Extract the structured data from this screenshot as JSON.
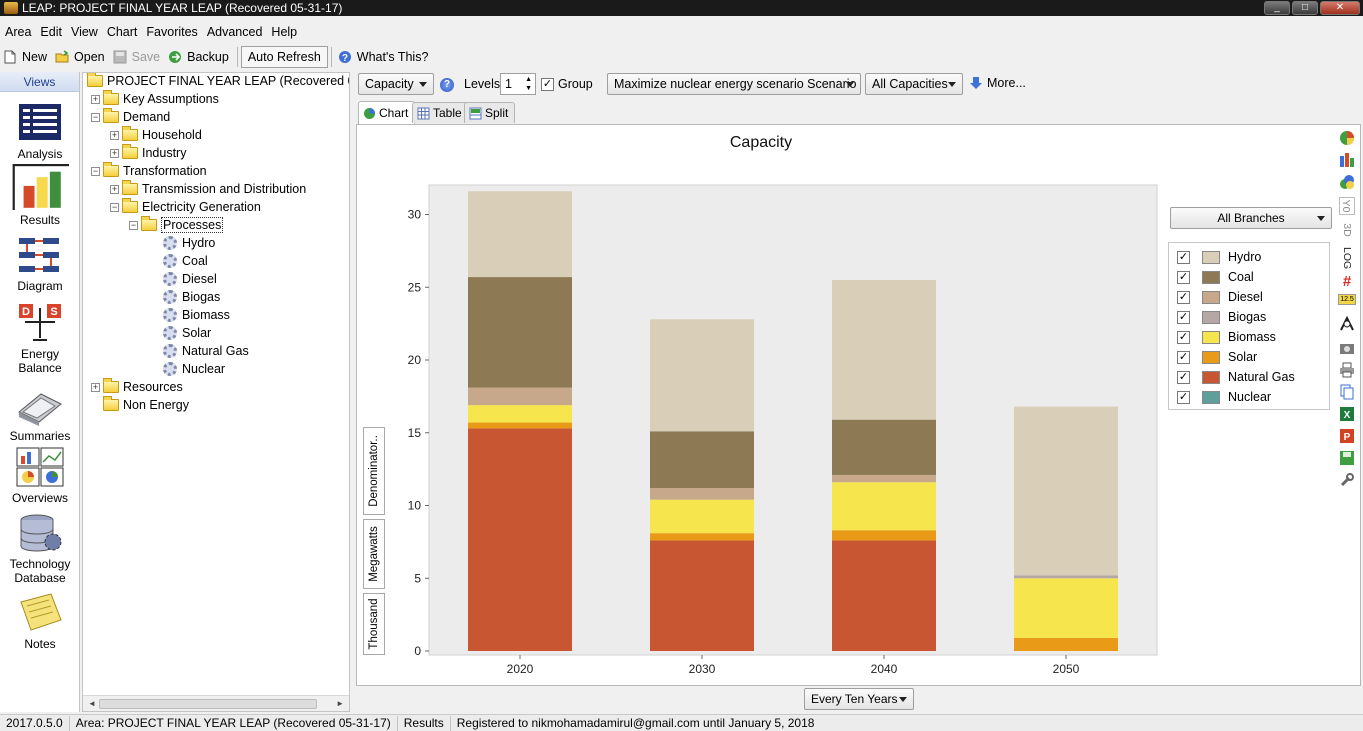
{
  "window": {
    "title": "LEAP: PROJECT FINAL YEAR LEAP (Recovered 05-31-17)",
    "controls": [
      "_",
      "□",
      "✕"
    ]
  },
  "menu": [
    "Area",
    "Edit",
    "View",
    "Chart",
    "Favorites",
    "Advanced",
    "Help"
  ],
  "toolbar": {
    "new": "New",
    "open": "Open",
    "save": "Save",
    "backup": "Backup",
    "auto_refresh": "Auto Refresh",
    "whats_this": "What's This?"
  },
  "views": {
    "header": "Views",
    "items": [
      {
        "label": "Analysis"
      },
      {
        "label": "Results",
        "active": true
      },
      {
        "label": "Diagram"
      },
      {
        "label": "Energy Balance"
      },
      {
        "label": "Summaries"
      },
      {
        "label": "Overviews"
      },
      {
        "label": "Technology Database"
      },
      {
        "label": "Notes"
      }
    ]
  },
  "tree": {
    "root": "PROJECT FINAL YEAR LEAP (Recovered 05-31-",
    "key_assumptions": "Key Assumptions",
    "demand": "Demand",
    "household": "Household",
    "industry": "Industry",
    "transformation": "Transformation",
    "transmission": "Transmission and Distribution",
    "electricity": "Electricity Generation",
    "processes": "Processes",
    "process_items": [
      "Hydro",
      "Coal",
      "Diesel",
      "Biogas",
      "Biomass",
      "Solar",
      "Natural Gas",
      "Nuclear"
    ],
    "resources": "Resources",
    "non_energy": "Non Energy"
  },
  "results_toolbar": {
    "variable": "Capacity",
    "levels_label": "Levels:",
    "levels_value": "1",
    "group_label": "Group",
    "group_checked": true,
    "scenario": "Maximize nuclear energy scenario Scenario",
    "filter": "All Capacities",
    "more": "More..."
  },
  "tabs": [
    "Chart",
    "Table",
    "Split"
  ],
  "legend_combo": "All Branches",
  "y_unit_boxes": [
    "Denominator..",
    "Megawatts",
    "Thousand"
  ],
  "side_tools": {
    "y0": "Y0",
    "three_d": "3D",
    "log": "LOG",
    "number": "12.5"
  },
  "period_combo": "Every Ten Years",
  "colors": {
    "Hydro": "#d9cfb9",
    "Coal": "#8d7a55",
    "Diesel": "#c8a88a",
    "Biogas": "#b4a7a4",
    "Biomass": "#f6e54c",
    "Solar": "#e99a17",
    "Natural Gas": "#c85632",
    "Nuclear": "#5e9f9c"
  },
  "chart_data": {
    "type": "bar",
    "stacked": true,
    "title": "Capacity",
    "ylabel": "Thousand Megawatts",
    "xlabel": "",
    "ylim": [
      0,
      32
    ],
    "yticks": [
      0,
      5,
      10,
      15,
      20,
      25,
      30
    ],
    "categories": [
      "2020",
      "2030",
      "2040",
      "2050"
    ],
    "series": [
      {
        "name": "Natural Gas",
        "values": [
          15.3,
          7.6,
          7.6,
          0
        ]
      },
      {
        "name": "Solar",
        "values": [
          0.4,
          0.5,
          0.7,
          0.9
        ]
      },
      {
        "name": "Biomass",
        "values": [
          1.2,
          2.3,
          3.3,
          4.1
        ]
      },
      {
        "name": "Biogas",
        "values": [
          0,
          0,
          0,
          0.2
        ]
      },
      {
        "name": "Diesel",
        "values": [
          1.2,
          0.8,
          0.5,
          0
        ]
      },
      {
        "name": "Coal",
        "values": [
          7.6,
          3.9,
          3.8,
          0
        ]
      },
      {
        "name": "Hydro",
        "values": [
          5.9,
          7.7,
          9.6,
          11.6
        ]
      },
      {
        "name": "Nuclear",
        "values": [
          0,
          0,
          0,
          0
        ]
      }
    ],
    "legend_order": [
      "Hydro",
      "Coal",
      "Diesel",
      "Biogas",
      "Biomass",
      "Solar",
      "Natural Gas",
      "Nuclear"
    ],
    "legend_position": "right",
    "grid": false
  },
  "status": {
    "version": "2017.0.5.0",
    "area": "Area: PROJECT FINAL YEAR LEAP (Recovered 05-31-17)",
    "view": "Results",
    "registration": "Registered to nikmohamadamirul@gmail.com until January 5, 2018"
  }
}
